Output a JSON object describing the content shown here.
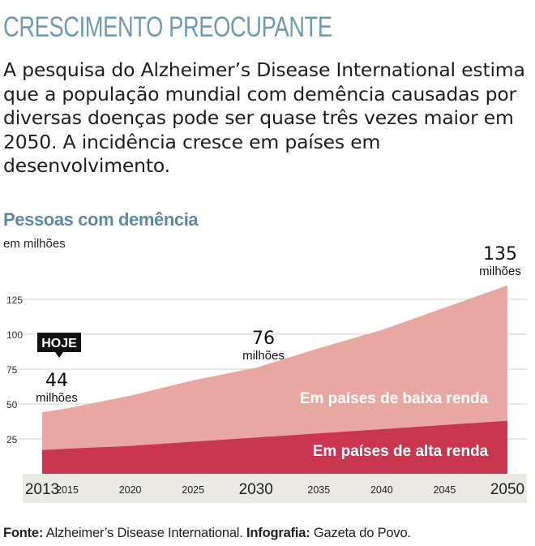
{
  "headline": "CRESCIMENTO PREOCUPANTE",
  "lead": "A pesquisa do Alzheimer’s Disease International estima que a população mundial com demência causadas por diversas doenças pode ser quase três vezes maior em 2050. A incidência cresce em países em desenvolvimento.",
  "chart_data": {
    "type": "area",
    "title": "Pessoas com demência",
    "ylabel": "em milhões",
    "x": [
      2013,
      2015,
      2020,
      2025,
      2030,
      2035,
      2040,
      2045,
      2050
    ],
    "xlim": [
      2013,
      2050
    ],
    "ylim": [
      0,
      140
    ],
    "y_ticks": [
      25,
      50,
      75,
      100,
      125
    ],
    "x_ticks": [
      {
        "label": "2013",
        "value": 2013,
        "major": true
      },
      {
        "label": "2015",
        "value": 2015,
        "major": false
      },
      {
        "label": "2020",
        "value": 2020,
        "major": false
      },
      {
        "label": "2025",
        "value": 2025,
        "major": false
      },
      {
        "label": "2030",
        "value": 2030,
        "major": true
      },
      {
        "label": "2035",
        "value": 2035,
        "major": false
      },
      {
        "label": "2040",
        "value": 2040,
        "major": false
      },
      {
        "label": "2045",
        "value": 2045,
        "major": false
      },
      {
        "label": "2050",
        "value": 2050,
        "major": true
      }
    ],
    "stacked": true,
    "grid": true,
    "series": [
      {
        "name": "Em países de alta renda",
        "color": "#c9364e",
        "values": [
          17,
          18,
          20,
          23,
          26,
          29,
          32,
          35,
          38
        ]
      },
      {
        "name": "Em países de baixa renda",
        "color": "#e9a7a2",
        "values": [
          27,
          29,
          36,
          44,
          50,
          61,
          71,
          84,
          97
        ]
      }
    ],
    "totals": [
      44,
      47,
      56,
      67,
      76,
      90,
      103,
      119,
      135
    ],
    "annotations": [
      {
        "year": 2013,
        "value": "44",
        "unit": "milhões"
      },
      {
        "year": 2030,
        "value": "76",
        "unit": "milhões"
      },
      {
        "year": 2050,
        "value": "135",
        "unit": "milhões"
      }
    ],
    "badge": "HOJE"
  },
  "footer": {
    "source_label": "Fonte:",
    "source": "Alzheimer’s Disease International.",
    "credit_label": "Infografia:",
    "credit": "Gazeta do Povo."
  }
}
